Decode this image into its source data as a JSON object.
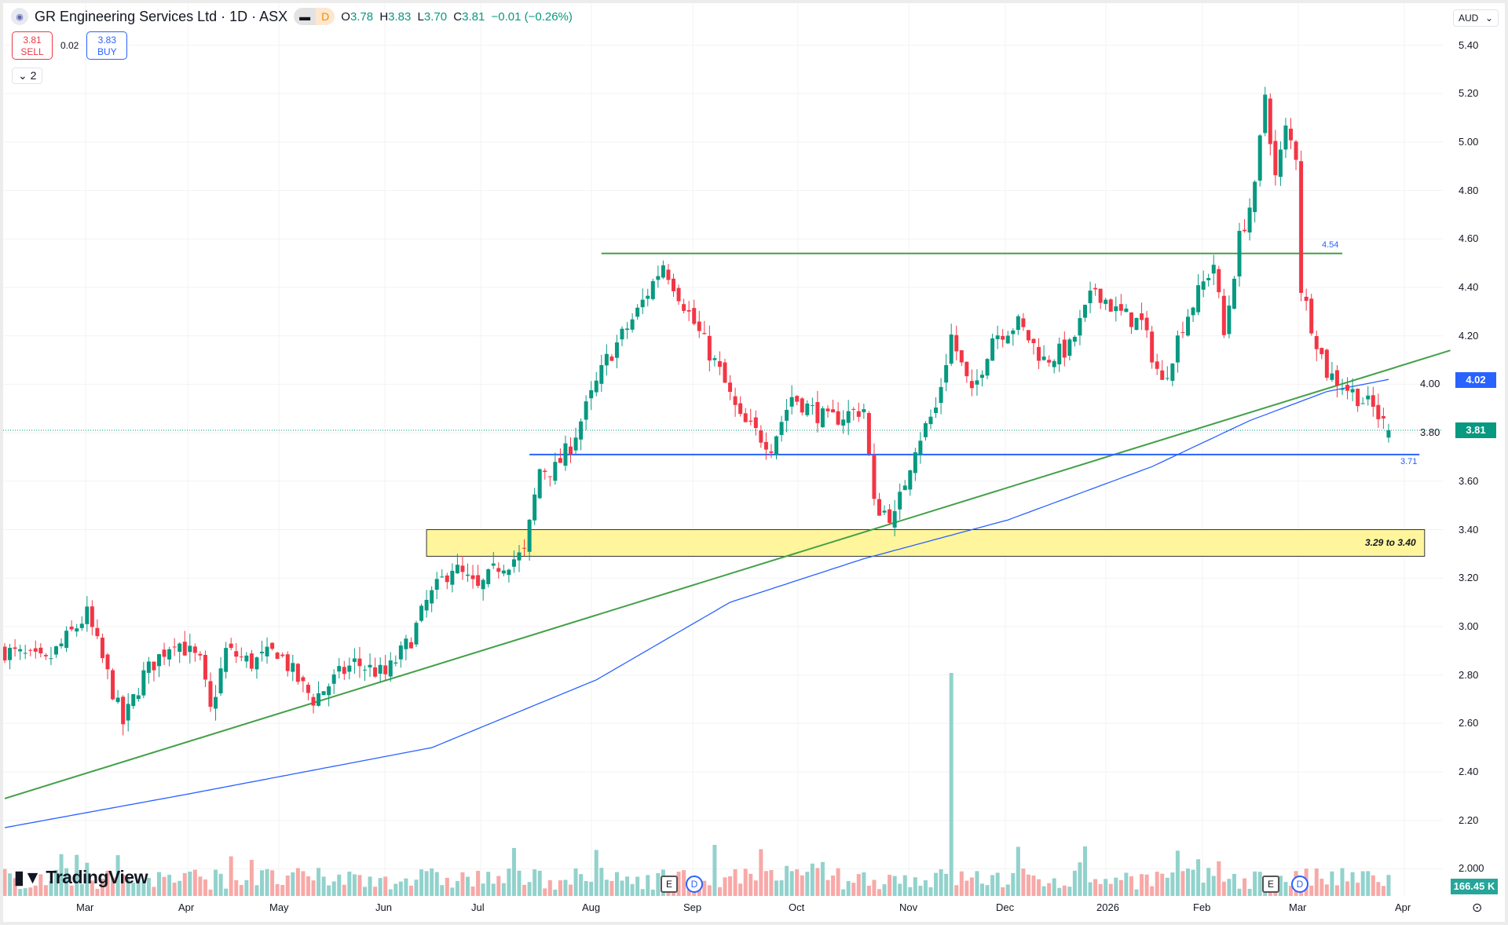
{
  "header": {
    "symbol_icon": "eye-logo-icon",
    "title": "GR Engineering Services Ltd · 1D · ASX",
    "pill_icon": "minus-icon",
    "pill_label": "D",
    "ohlc": {
      "o_label": "O",
      "o": "3.78",
      "h_label": "H",
      "h": "3.83",
      "l_label": "L",
      "l": "3.70",
      "c_label": "C",
      "c": "3.81",
      "change": "−0.01 (−0.26%)"
    }
  },
  "trade": {
    "sell_price": "3.81",
    "sell_label": "SELL",
    "spread": "0.02",
    "buy_price": "3.83",
    "buy_label": "BUY"
  },
  "indicators_toggle": "2",
  "currency": "AUD",
  "brand": "TradingView",
  "events": [
    {
      "label": "E"
    },
    {
      "label": "D"
    },
    {
      "label": "E"
    },
    {
      "label": "D"
    }
  ],
  "colors": {
    "up": "#089981",
    "down": "#f23645",
    "vol_up": "#92d2cc",
    "vol_down": "#f7a9a7",
    "ma": "#2962ff",
    "trend": "#43a047",
    "zone": "#fff59d"
  },
  "chart_data": {
    "type": "candlestick",
    "title": "GR Engineering Services Ltd · 1D · ASX",
    "y_ticks": [
      "5.40",
      "5.20",
      "5.00",
      "4.80",
      "4.60",
      "4.40",
      "4.20",
      "4.00",
      "3.80",
      "3.60",
      "3.40",
      "3.20",
      "3.00",
      "2.80",
      "2.60",
      "2.40",
      "2.20",
      "2.000"
    ],
    "ylim": [
      2.0,
      5.4
    ],
    "x_ticks": [
      "Mar",
      "Apr",
      "May",
      "Jun",
      "Jul",
      "Aug",
      "Sep",
      "Oct",
      "Nov",
      "Dec",
      "2026",
      "Feb",
      "Mar",
      "Apr"
    ],
    "num_sessions": 270,
    "approx_closes": [
      [
        0,
        2.9
      ],
      [
        8,
        2.85
      ],
      [
        16,
        3.05
      ],
      [
        20,
        2.8
      ],
      [
        23,
        2.6
      ],
      [
        27,
        2.8
      ],
      [
        33,
        2.95
      ],
      [
        38,
        2.85
      ],
      [
        40,
        2.65
      ],
      [
        43,
        2.9
      ],
      [
        48,
        2.85
      ],
      [
        53,
        2.9
      ],
      [
        58,
        2.75
      ],
      [
        60,
        2.7
      ],
      [
        65,
        2.8
      ],
      [
        68,
        2.85
      ],
      [
        74,
        2.8
      ],
      [
        79,
        2.95
      ],
      [
        82,
        3.1
      ],
      [
        87,
        3.25
      ],
      [
        92,
        3.15
      ],
      [
        96,
        3.25
      ],
      [
        101,
        3.3
      ],
      [
        104,
        3.65
      ],
      [
        107,
        3.65
      ],
      [
        110,
        3.75
      ],
      [
        114,
        3.95
      ],
      [
        117,
        4.1
      ],
      [
        123,
        4.3
      ],
      [
        128,
        4.5
      ],
      [
        134,
        4.25
      ],
      [
        139,
        4.05
      ],
      [
        143,
        3.85
      ],
      [
        149,
        3.75
      ],
      [
        153,
        3.95
      ],
      [
        160,
        3.85
      ],
      [
        167,
        3.9
      ],
      [
        169,
        3.5
      ],
      [
        173,
        3.45
      ],
      [
        177,
        3.75
      ],
      [
        181,
        3.9
      ],
      [
        184,
        4.2
      ],
      [
        188,
        3.95
      ],
      [
        192,
        4.2
      ],
      [
        197,
        4.25
      ],
      [
        202,
        4.1
      ],
      [
        207,
        4.15
      ],
      [
        212,
        4.4
      ],
      [
        216,
        4.3
      ],
      [
        221,
        4.25
      ],
      [
        225,
        4.0
      ],
      [
        229,
        4.25
      ],
      [
        235,
        4.5
      ],
      [
        237,
        4.2
      ],
      [
        240,
        4.6
      ],
      [
        243,
        4.8
      ],
      [
        245,
        5.2
      ],
      [
        247,
        4.85
      ],
      [
        249,
        5.05
      ],
      [
        251,
        4.95
      ],
      [
        252,
        4.4
      ],
      [
        254,
        4.25
      ],
      [
        257,
        4.05
      ],
      [
        260,
        4.0
      ],
      [
        263,
        3.95
      ],
      [
        266,
        3.9
      ],
      [
        269,
        3.81
      ]
    ],
    "ma_200": [
      [
        0,
        2.17
      ],
      [
        36,
        2.31
      ],
      [
        83,
        2.5
      ],
      [
        115,
        2.78
      ],
      [
        141,
        3.1
      ],
      [
        167,
        3.28
      ],
      [
        195,
        3.44
      ],
      [
        223,
        3.66
      ],
      [
        242,
        3.85
      ],
      [
        257,
        3.97
      ],
      [
        269,
        4.02
      ]
    ],
    "last_price": "3.81",
    "ma_value": "4.02",
    "volume_last": "166.45 K",
    "volume_spike_session": 184,
    "resistance": {
      "value": 4.54,
      "label": "4.54",
      "from_session": 116,
      "to_session": 260
    },
    "support": {
      "value": 3.71,
      "label": "3.71",
      "from_session": 102,
      "to_session": 275
    },
    "zone": {
      "low": 3.29,
      "high": 3.4,
      "label": "3.29 to 3.40",
      "from_session": 82,
      "to_session": 276
    },
    "trendline": {
      "start_session": 0,
      "start": 2.29,
      "end_session": 281,
      "end": 4.14
    }
  }
}
